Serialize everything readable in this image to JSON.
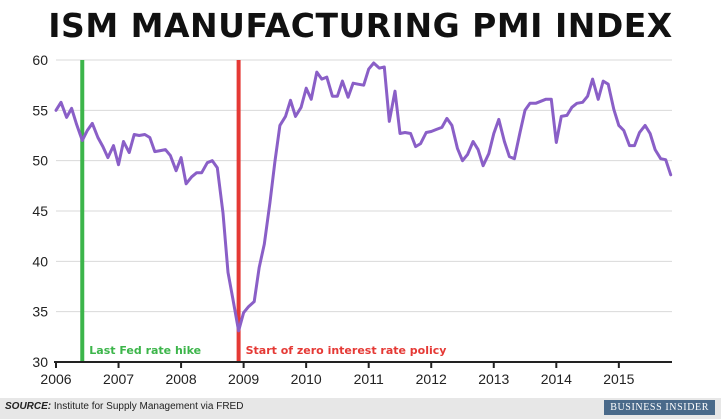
{
  "title": "ISM MANUFACTURING PMI INDEX",
  "footer": {
    "source_label": "SOURCE:",
    "source_text": "Institute for Supply Management via FRED",
    "brand": "BUSINESS INSIDER"
  },
  "colors": {
    "line": "#8a5fc7",
    "fed_hike": "#3cb54a",
    "zero_rate": "#e53935",
    "grid": "#d9d9d9",
    "axis": "#222222"
  },
  "chart_data": {
    "type": "line",
    "title": "ISM MANUFACTURING PMI INDEX",
    "xlim": [
      2006,
      2015.85
    ],
    "ylim": [
      30,
      60
    ],
    "x_ticks": [
      2006,
      2007,
      2008,
      2009,
      2010,
      2011,
      2012,
      2013,
      2014,
      2015
    ],
    "y_ticks": [
      30,
      35,
      40,
      45,
      50,
      55,
      60
    ],
    "grid": "horizontal",
    "annotations": [
      {
        "x": 2006.42,
        "text": "Last Fed rate hike",
        "color": "#3cb54a"
      },
      {
        "x": 2008.92,
        "text": "Start of zero interest rate policy",
        "color": "#e53935"
      }
    ],
    "series": [
      {
        "x": [
          2006.0,
          2006.08,
          2006.17,
          2006.25,
          2006.33,
          2006.42,
          2006.5,
          2006.58,
          2006.67,
          2006.75,
          2006.83,
          2006.92,
          2007.0,
          2007.08,
          2007.17,
          2007.25,
          2007.33,
          2007.42,
          2007.5,
          2007.58,
          2007.67,
          2007.75,
          2007.83,
          2007.92,
          2008.0,
          2008.08,
          2008.17,
          2008.25,
          2008.33,
          2008.42,
          2008.5,
          2008.58,
          2008.67,
          2008.75,
          2008.83,
          2008.92,
          2009.0,
          2009.08,
          2009.17,
          2009.25,
          2009.33,
          2009.42,
          2009.5,
          2009.58,
          2009.67,
          2009.75,
          2009.83,
          2009.92,
          2010.0,
          2010.08,
          2010.17,
          2010.25,
          2010.33,
          2010.42,
          2010.5,
          2010.58,
          2010.67,
          2010.75,
          2010.83,
          2010.92,
          2011.0,
          2011.08,
          2011.17,
          2011.25,
          2011.33,
          2011.42,
          2011.5,
          2011.58,
          2011.67,
          2011.75,
          2011.83,
          2011.92,
          2012.0,
          2012.08,
          2012.17,
          2012.25,
          2012.33,
          2012.42,
          2012.5,
          2012.58,
          2012.67,
          2012.75,
          2012.83,
          2012.92,
          2013.0,
          2013.08,
          2013.17,
          2013.25,
          2013.33,
          2013.42,
          2013.5,
          2013.58,
          2013.67,
          2013.75,
          2013.83,
          2013.92,
          2014.0,
          2014.08,
          2014.17,
          2014.25,
          2014.33,
          2014.42,
          2014.5,
          2014.58,
          2014.67,
          2014.75,
          2014.83,
          2014.92,
          2015.0,
          2015.08,
          2015.17,
          2015.25,
          2015.33,
          2015.42,
          2015.5,
          2015.58,
          2015.67,
          2015.75,
          2015.83
        ],
        "values": [
          55.0,
          55.8,
          54.3,
          55.2,
          53.6,
          52.0,
          53.0,
          53.7,
          52.3,
          51.4,
          50.3,
          51.5,
          49.6,
          51.9,
          50.8,
          52.6,
          52.5,
          52.6,
          52.3,
          50.9,
          51.0,
          51.1,
          50.5,
          49.0,
          50.3,
          47.7,
          48.4,
          48.8,
          48.8,
          49.8,
          50.0,
          49.3,
          44.8,
          38.9,
          36.2,
          33.1,
          34.9,
          35.5,
          36.0,
          39.4,
          41.7,
          45.8,
          49.9,
          53.5,
          54.4,
          56.0,
          54.4,
          55.3,
          57.2,
          56.1,
          58.8,
          58.1,
          58.3,
          56.4,
          56.4,
          57.9,
          56.3,
          57.7,
          57.6,
          57.5,
          59.1,
          59.7,
          59.2,
          59.3,
          53.9,
          56.9,
          52.7,
          52.8,
          52.7,
          51.4,
          51.7,
          52.8,
          52.9,
          53.1,
          53.3,
          54.2,
          53.5,
          51.2,
          50.0,
          50.6,
          51.9,
          51.1,
          49.5,
          50.7,
          52.7,
          54.1,
          51.9,
          50.4,
          50.2,
          52.8,
          55.0,
          55.7,
          55.7,
          55.9,
          56.1,
          56.1,
          51.8,
          54.4,
          54.5,
          55.3,
          55.7,
          55.8,
          56.4,
          58.1,
          56.1,
          57.9,
          57.6,
          55.1,
          53.5,
          53.0,
          51.5,
          51.5,
          52.8,
          53.5,
          52.7,
          51.1,
          50.2,
          50.1,
          48.6
        ]
      }
    ]
  }
}
